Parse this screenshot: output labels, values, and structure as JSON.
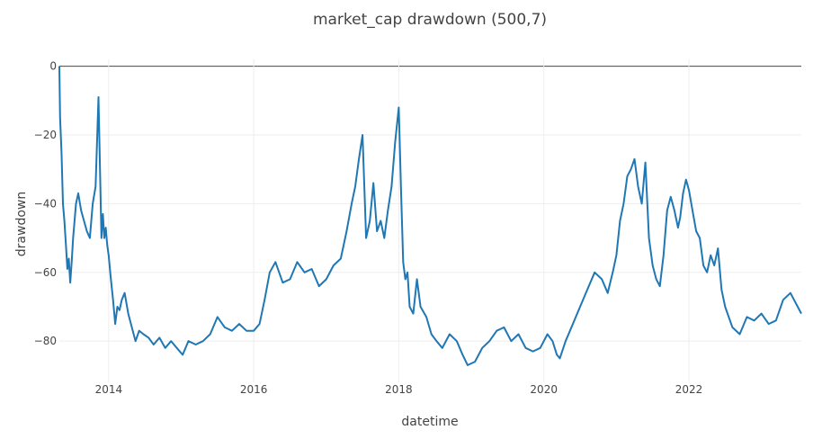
{
  "chart_data": {
    "type": "line",
    "title": "market_cap drawdown (500,7)",
    "xlabel": "datetime",
    "ylabel": "drawdown",
    "xlim": [
      2013.32,
      2023.55
    ],
    "ylim": [
      -92,
      2
    ],
    "x_ticks": [
      2014,
      2016,
      2018,
      2020,
      2022
    ],
    "x_tick_labels": [
      "2014",
      "2016",
      "2018",
      "2020",
      "2022"
    ],
    "y_ticks": [
      0,
      -20,
      -40,
      -60,
      -80
    ],
    "y_tick_labels": [
      "0",
      "−20",
      "−40",
      "−60",
      "−80"
    ],
    "grid": true,
    "legend": "none",
    "series": [
      {
        "color": "#1f77b4",
        "x": [
          2013.32,
          2013.33,
          2013.35,
          2013.37,
          2013.39,
          2013.41,
          2013.43,
          2013.45,
          2013.47,
          2013.49,
          2013.51,
          2013.53,
          2013.55,
          2013.58,
          2013.62,
          2013.66,
          2013.7,
          2013.74,
          2013.78,
          2013.82,
          2013.86,
          2013.88,
          2013.9,
          2013.92,
          2013.94,
          2013.96,
          2013.98,
          2014.0,
          2014.03,
          2014.06,
          2014.09,
          2014.12,
          2014.15,
          2014.18,
          2014.22,
          2014.27,
          2014.32,
          2014.37,
          2014.42,
          2014.48,
          2014.55,
          2014.62,
          2014.7,
          2014.78,
          2014.86,
          2014.94,
          2015.02,
          2015.1,
          2015.2,
          2015.3,
          2015.4,
          2015.5,
          2015.6,
          2015.7,
          2015.8,
          2015.9,
          2016.0,
          2016.08,
          2016.15,
          2016.22,
          2016.3,
          2016.4,
          2016.5,
          2016.6,
          2016.7,
          2016.8,
          2016.9,
          2017.0,
          2017.1,
          2017.2,
          2017.28,
          2017.35,
          2017.4,
          2017.45,
          2017.5,
          2017.55,
          2017.6,
          2017.65,
          2017.7,
          2017.75,
          2017.8,
          2017.85,
          2017.9,
          2017.95,
          2018.0,
          2018.03,
          2018.06,
          2018.09,
          2018.12,
          2018.15,
          2018.2,
          2018.25,
          2018.3,
          2018.38,
          2018.45,
          2018.52,
          2018.6,
          2018.7,
          2018.8,
          2018.88,
          2018.95,
          2019.05,
          2019.15,
          2019.25,
          2019.35,
          2019.45,
          2019.55,
          2019.65,
          2019.75,
          2019.85,
          2019.95,
          2020.05,
          2020.12,
          2020.18,
          2020.22,
          2020.3,
          2020.4,
          2020.5,
          2020.6,
          2020.7,
          2020.8,
          2020.88,
          2020.95,
          2021.0,
          2021.05,
          2021.1,
          2021.15,
          2021.2,
          2021.25,
          2021.3,
          2021.35,
          2021.4,
          2021.45,
          2021.5,
          2021.55,
          2021.6,
          2021.65,
          2021.7,
          2021.75,
          2021.8,
          2021.85,
          2021.88,
          2021.92,
          2021.96,
          2022.0,
          2022.05,
          2022.1,
          2022.15,
          2022.2,
          2022.25,
          2022.3,
          2022.35,
          2022.4,
          2022.45,
          2022.5,
          2022.6,
          2022.7,
          2022.8,
          2022.9,
          2023.0,
          2023.1,
          2023.2,
          2023.3,
          2023.4,
          2023.45,
          2023.5,
          2023.55
        ],
        "y": [
          0,
          -15,
          -25,
          -40,
          -45,
          -52,
          -59,
          -56,
          -63,
          -57,
          -50,
          -45,
          -40,
          -37,
          -42,
          -45,
          -48,
          -50,
          -40,
          -35,
          -9,
          -30,
          -50,
          -43,
          -50,
          -47,
          -52,
          -55,
          -62,
          -68,
          -75,
          -70,
          -71,
          -68,
          -66,
          -72,
          -76,
          -80,
          -77,
          -78,
          -79,
          -81,
          -79,
          -82,
          -80,
          -82,
          -84,
          -80,
          -81,
          -80,
          -78,
          -73,
          -76,
          -77,
          -75,
          -77,
          -77,
          -75,
          -68,
          -60,
          -57,
          -63,
          -62,
          -57,
          -60,
          -59,
          -64,
          -62,
          -58,
          -56,
          -48,
          -40,
          -35,
          -27,
          -20,
          -50,
          -45,
          -34,
          -48,
          -45,
          -50,
          -42,
          -35,
          -22,
          -12,
          -35,
          -57,
          -62,
          -60,
          -70,
          -72,
          -62,
          -70,
          -73,
          -78,
          -80,
          -82,
          -78,
          -80,
          -84,
          -87,
          -86,
          -82,
          -80,
          -77,
          -76,
          -80,
          -78,
          -82,
          -83,
          -82,
          -78,
          -80,
          -84,
          -85,
          -80,
          -75,
          -70,
          -65,
          -60,
          -62,
          -66,
          -60,
          -55,
          -45,
          -40,
          -32,
          -30,
          -27,
          -35,
          -40,
          -28,
          -50,
          -58,
          -62,
          -64,
          -55,
          -42,
          -38,
          -42,
          -47,
          -44,
          -37,
          -33,
          -36,
          -42,
          -48,
          -50,
          -58,
          -60,
          -55,
          -58,
          -53,
          -65,
          -70,
          -76,
          -78,
          -73,
          -74,
          -72,
          -75,
          -74,
          -68,
          -66,
          -68,
          -70,
          -72
        ]
      }
    ]
  }
}
